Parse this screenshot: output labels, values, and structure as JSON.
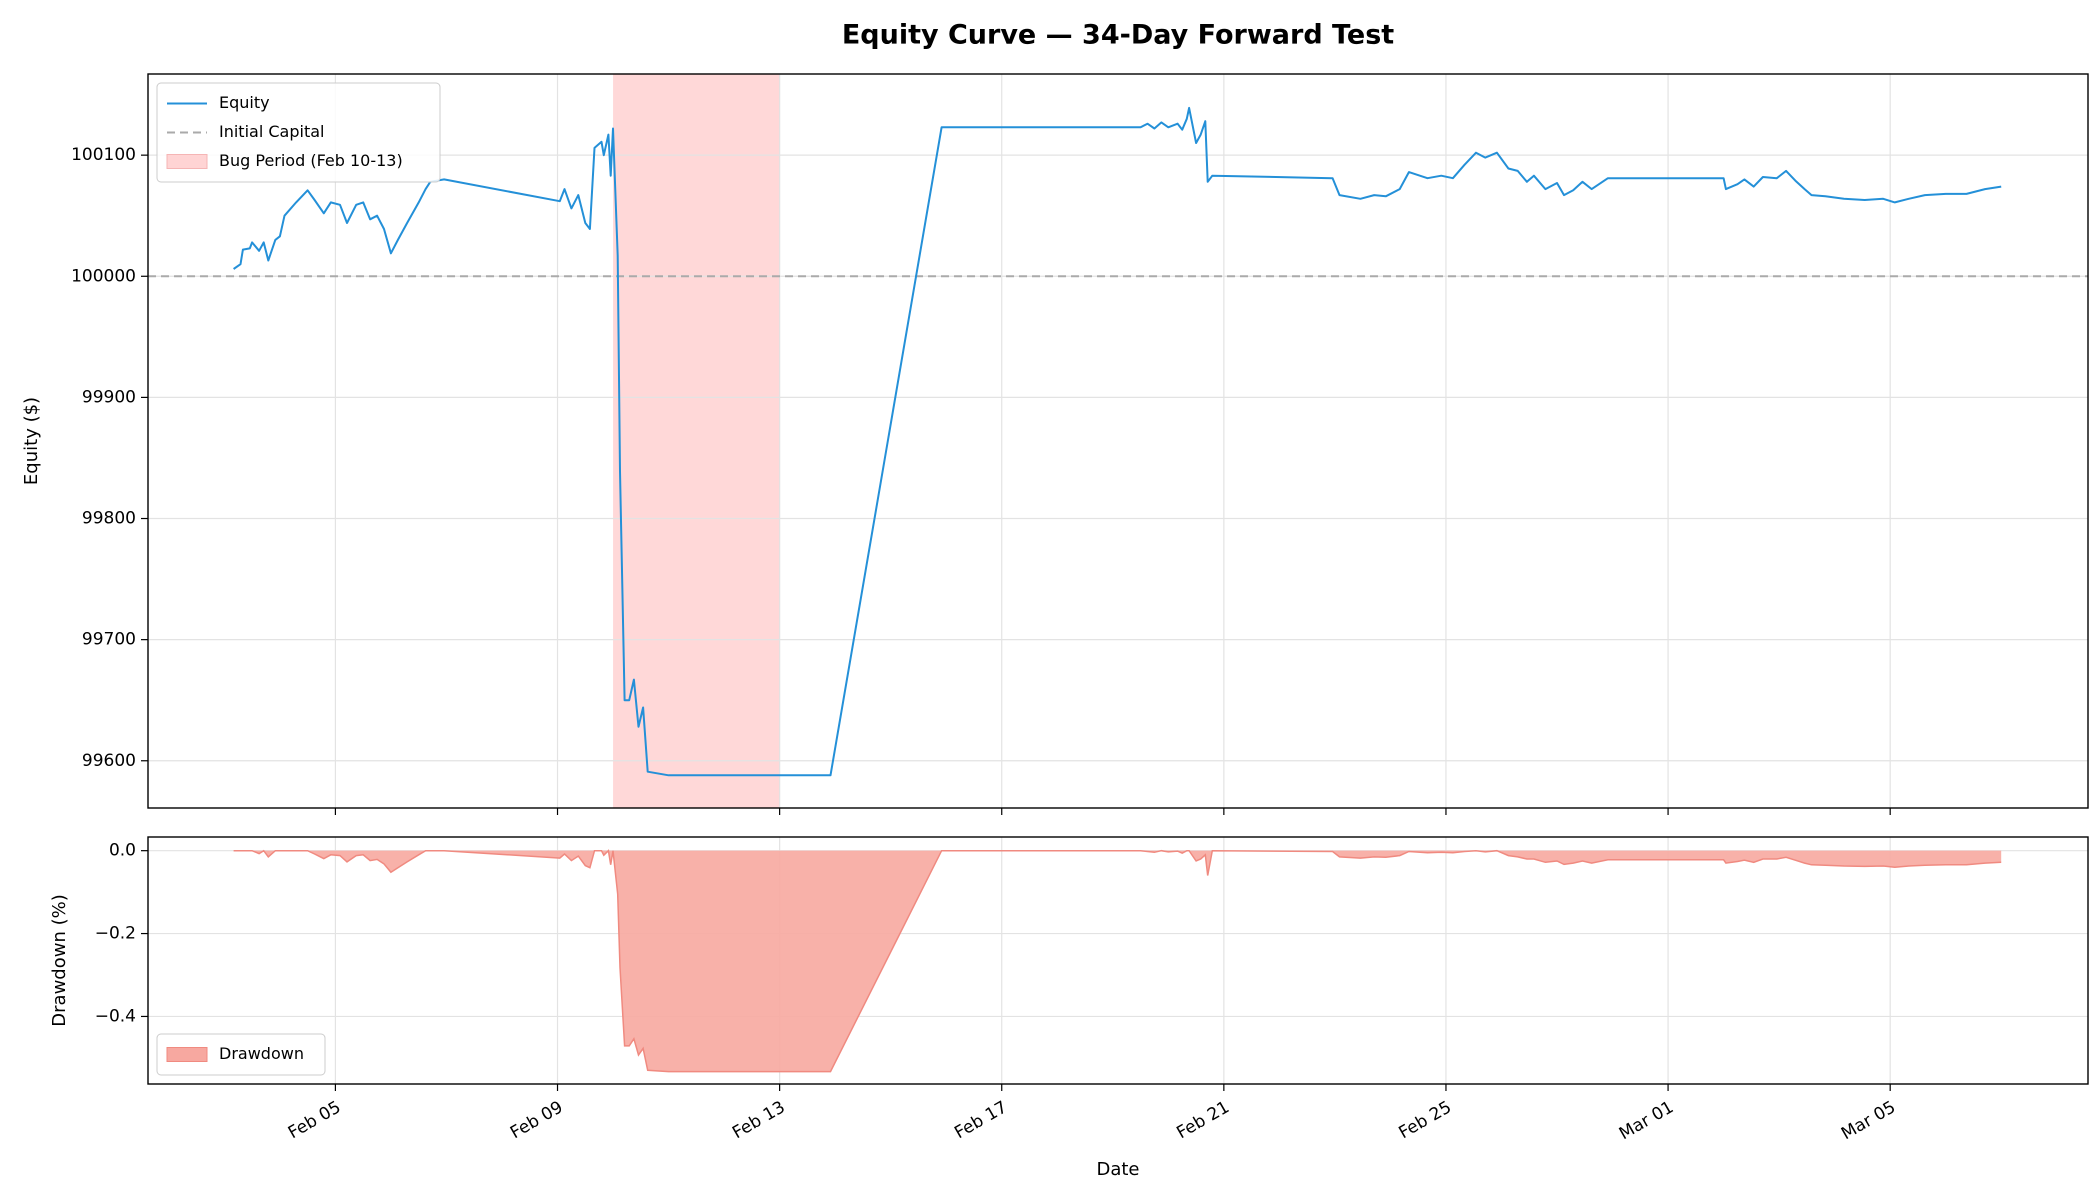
{
  "chart_data": [
    {
      "type": "line",
      "title": "Equity Curve — 34-Day Forward Test",
      "ylabel": "Equity ($)",
      "x": [
        "02-03 04:00",
        "02-03 07:00",
        "02-03 08:00",
        "02-03 11:00",
        "02-03 12:00",
        "02-03 15:00",
        "02-03 17:00",
        "02-03 19:00",
        "02-03 22:00",
        "02-04 00:00",
        "02-04 02:00",
        "02-04 07:00",
        "02-04 12:00",
        "02-04 15:00",
        "02-04 19:00",
        "02-04 22:00",
        "02-05 02:00",
        "02-05 05:00",
        "02-05 09:00",
        "02-05 12:00",
        "02-05 15:00",
        "02-05 18:00",
        "02-05 21:00",
        "02-06 00:00",
        "02-06 03:00",
        "02-06 07:00",
        "02-06 12:00",
        "02-06 15:00",
        "02-06 17:00",
        "02-06 23:00",
        "02-09 01:00",
        "02-09 03:00",
        "02-09 06:00",
        "02-09 09:00",
        "02-09 12:00",
        "02-09 14:00",
        "02-09 16:00",
        "02-09 19:00",
        "02-09 20:00",
        "02-09 22:00",
        "02-09 23:00",
        "02-10 00:00",
        "02-10 02:00",
        "02-10 03:00",
        "02-10 05:00",
        "02-10 07:00",
        "02-10 09:00",
        "02-10 11:00",
        "02-10 13:00",
        "02-10 15:00",
        "02-11 00:00",
        "02-13 22:00",
        "02-15 22:00",
        "02-19 12:00",
        "02-19 15:00",
        "02-19 18:00",
        "02-19 21:00",
        "02-20 00:00",
        "02-20 04:00",
        "02-20 06:00",
        "02-20 08:00",
        "02-20 09:00",
        "02-20 12:00",
        "02-20 14:00",
        "02-20 16:00",
        "02-20 17:00",
        "02-20 19:00",
        "02-22 23:00",
        "02-23 02:00",
        "02-23 11:00",
        "02-23 17:00",
        "02-23 22:00",
        "02-24 04:00",
        "02-24 08:00",
        "02-24 16:00",
        "02-24 22:00",
        "02-25 03:00",
        "02-25 08:00",
        "02-25 13:00",
        "02-25 17:00",
        "02-25 22:00",
        "02-26 03:00",
        "02-26 07:00",
        "02-26 11:00",
        "02-26 14:00",
        "02-26 19:00",
        "02-27 00:00",
        "02-27 03:00",
        "02-27 07:00",
        "02-27 11:00",
        "02-27 15:00",
        "02-27 22:00",
        "03-02 00:00",
        "03-02 01:00",
        "03-02 06:00",
        "03-02 09:00",
        "03-02 13:00",
        "03-02 17:00",
        "03-02 23:00",
        "03-03 03:00",
        "03-03 07:00",
        "03-03 11:00",
        "03-03 14:00",
        "03-03 20:00",
        "03-04 04:00",
        "03-04 13:00",
        "03-04 21:00",
        "03-05 02:00",
        "03-05 08:00",
        "03-05 15:00",
        "03-06 00:00",
        "03-06 09:00",
        "03-06 17:00",
        "03-07 00:00"
      ],
      "series": [
        {
          "name": "Equity",
          "color": "#2490d8",
          "values": [
            100006,
            100010,
            100022,
            100023,
            100028,
            100021,
            100028,
            100013,
            100030,
            100033,
            100050,
            100061,
            100071,
            100063,
            100052,
            100061,
            100059,
            100044,
            100059,
            100061,
            100047,
            100050,
            100039,
            100019,
            100030,
            100044,
            100061,
            100072,
            100078,
            100080,
            100062,
            100072,
            100056,
            100067,
            100044,
            100039,
            100106,
            100111,
            100100,
            100117,
            100083,
            100122,
            100017,
            99839,
            99650,
            99650,
            99667,
            99628,
            99644,
            99591,
            99588,
            99588,
            100123,
            100123,
            100126,
            100122,
            100127,
            100123,
            100126,
            100121,
            100130,
            100139,
            100110,
            100117,
            100128,
            100078,
            100083,
            100081,
            100067,
            100064,
            100067,
            100066,
            100072,
            100086,
            100081,
            100083,
            100081,
            100092,
            100102,
            100098,
            100102,
            100089,
            100087,
            100078,
            100083,
            100072,
            100077,
            100067,
            100071,
            100078,
            100072,
            100081,
            100081,
            100072,
            100076,
            100080,
            100074,
            100082,
            100081,
            100087,
            100079,
            100072,
            100067,
            100066,
            100064,
            100063,
            100064,
            100061,
            100064,
            100067,
            100068,
            100068,
            100072,
            100074
          ]
        }
      ],
      "reference_line": {
        "name": "Initial Capital",
        "value": 100000,
        "color": "#aaaaaa"
      },
      "span": {
        "name": "Bug Period (Feb 10-13)",
        "start": "02-10 00:00",
        "end": "02-13 00:00",
        "color": "#ffd4d4"
      },
      "xlim": [
        "02-01 15:00",
        "03-08 13:30"
      ],
      "xticks": [
        "02-05 00:00",
        "02-09 00:00",
        "02-13 00:00",
        "02-17 00:00",
        "02-21 00:00",
        "02-25 00:00",
        "03-01 00:00",
        "03-05 00:00"
      ],
      "ylim": [
        99561,
        100167
      ],
      "yticks": [
        99600,
        99700,
        99800,
        99900,
        100000,
        100100
      ],
      "grid": true,
      "legend": "upper left"
    },
    {
      "type": "area",
      "xlabel": "Date",
      "ylabel": "Drawdown (%)",
      "x": [
        "02-03 04:00",
        "02-03 07:00",
        "02-03 08:00",
        "02-03 11:00",
        "02-03 12:00",
        "02-03 15:00",
        "02-03 17:00",
        "02-03 19:00",
        "02-03 22:00",
        "02-04 00:00",
        "02-04 02:00",
        "02-04 07:00",
        "02-04 12:00",
        "02-04 15:00",
        "02-04 19:00",
        "02-04 22:00",
        "02-05 02:00",
        "02-05 05:00",
        "02-05 09:00",
        "02-05 12:00",
        "02-05 15:00",
        "02-05 18:00",
        "02-05 21:00",
        "02-06 00:00",
        "02-06 03:00",
        "02-06 07:00",
        "02-06 12:00",
        "02-06 15:00",
        "02-06 17:00",
        "02-06 23:00",
        "02-09 01:00",
        "02-09 03:00",
        "02-09 06:00",
        "02-09 09:00",
        "02-09 12:00",
        "02-09 14:00",
        "02-09 16:00",
        "02-09 19:00",
        "02-09 20:00",
        "02-09 22:00",
        "02-09 23:00",
        "02-10 00:00",
        "02-10 02:00",
        "02-10 03:00",
        "02-10 05:00",
        "02-10 07:00",
        "02-10 09:00",
        "02-10 11:00",
        "02-10 13:00",
        "02-10 15:00",
        "02-11 00:00",
        "02-13 22:00",
        "02-15 22:00",
        "02-19 12:00",
        "02-19 15:00",
        "02-19 18:00",
        "02-19 21:00",
        "02-20 00:00",
        "02-20 04:00",
        "02-20 06:00",
        "02-20 08:00",
        "02-20 09:00",
        "02-20 12:00",
        "02-20 14:00",
        "02-20 16:00",
        "02-20 17:00",
        "02-20 19:00",
        "02-22 23:00",
        "02-23 02:00",
        "02-23 11:00",
        "02-23 17:00",
        "02-23 22:00",
        "02-24 04:00",
        "02-24 08:00",
        "02-24 16:00",
        "02-24 22:00",
        "02-25 03:00",
        "02-25 08:00",
        "02-25 13:00",
        "02-25 17:00",
        "02-25 22:00",
        "02-26 03:00",
        "02-26 07:00",
        "02-26 11:00",
        "02-26 14:00",
        "02-26 19:00",
        "02-27 00:00",
        "02-27 03:00",
        "02-27 07:00",
        "02-27 11:00",
        "02-27 15:00",
        "02-27 22:00",
        "03-02 00:00",
        "03-02 01:00",
        "03-02 06:00",
        "03-02 09:00",
        "03-02 13:00",
        "03-02 17:00",
        "03-02 23:00",
        "03-03 03:00",
        "03-03 07:00",
        "03-03 11:00",
        "03-03 14:00",
        "03-03 20:00",
        "03-04 04:00",
        "03-04 13:00",
        "03-04 21:00",
        "03-05 02:00",
        "03-05 08:00",
        "03-05 15:00",
        "03-06 00:00",
        "03-06 09:00",
        "03-06 17:00",
        "03-07 00:00"
      ],
      "series": [
        {
          "name": "Drawdown",
          "color": "#f7a8a0",
          "values": [
            0,
            0,
            0,
            0,
            0,
            -0.007,
            0,
            -0.015,
            0,
            0,
            0,
            0,
            0,
            -0.008,
            -0.019,
            -0.01,
            -0.012,
            -0.027,
            -0.012,
            -0.01,
            -0.024,
            -0.021,
            -0.032,
            -0.052,
            -0.041,
            -0.027,
            -0.01,
            0,
            0,
            0,
            -0.018,
            -0.008,
            -0.024,
            -0.013,
            -0.036,
            -0.041,
            0,
            0,
            -0.011,
            0,
            -0.034,
            0,
            -0.105,
            -0.282,
            -0.471,
            -0.471,
            -0.454,
            -0.493,
            -0.477,
            -0.53,
            -0.533,
            -0.533,
            0,
            0,
            -0.002,
            -0.004,
            0,
            -0.003,
            -0.001,
            -0.006,
            0,
            0,
            -0.025,
            -0.02,
            -0.01,
            -0.06,
            0,
            -0.002,
            -0.015,
            -0.018,
            -0.015,
            -0.016,
            -0.012,
            -0.002,
            -0.005,
            -0.004,
            -0.005,
            -0.002,
            0,
            -0.003,
            0,
            -0.012,
            -0.015,
            -0.02,
            -0.02,
            -0.028,
            -0.025,
            -0.033,
            -0.03,
            -0.025,
            -0.03,
            -0.022,
            -0.022,
            -0.03,
            -0.026,
            -0.023,
            -0.028,
            -0.02,
            -0.02,
            -0.016,
            -0.023,
            -0.03,
            -0.034,
            -0.035,
            -0.037,
            -0.038,
            -0.037,
            -0.04,
            -0.037,
            -0.035,
            -0.034,
            -0.034,
            -0.03,
            -0.028
          ]
        }
      ],
      "xlim": [
        "02-01 15:00",
        "03-08 13:30"
      ],
      "xticks": [
        {
          "value": "02-05 00:00",
          "label": "Feb 05"
        },
        {
          "value": "02-09 00:00",
          "label": "Feb 09"
        },
        {
          "value": "02-13 00:00",
          "label": "Feb 13"
        },
        {
          "value": "02-17 00:00",
          "label": "Feb 17"
        },
        {
          "value": "02-21 00:00",
          "label": "Feb 21"
        },
        {
          "value": "02-25 00:00",
          "label": "Feb 25"
        },
        {
          "value": "03-01 00:00",
          "label": "Mar 01"
        },
        {
          "value": "03-05 00:00",
          "label": "Mar 05"
        }
      ],
      "ylim": [
        -0.563,
        0.033
      ],
      "yticks": [
        {
          "value": 0,
          "label": "0.0"
        },
        {
          "value": -0.2,
          "label": "−0.2"
        },
        {
          "value": -0.4,
          "label": "−0.4"
        }
      ],
      "grid": true,
      "legend": "lower left"
    }
  ]
}
